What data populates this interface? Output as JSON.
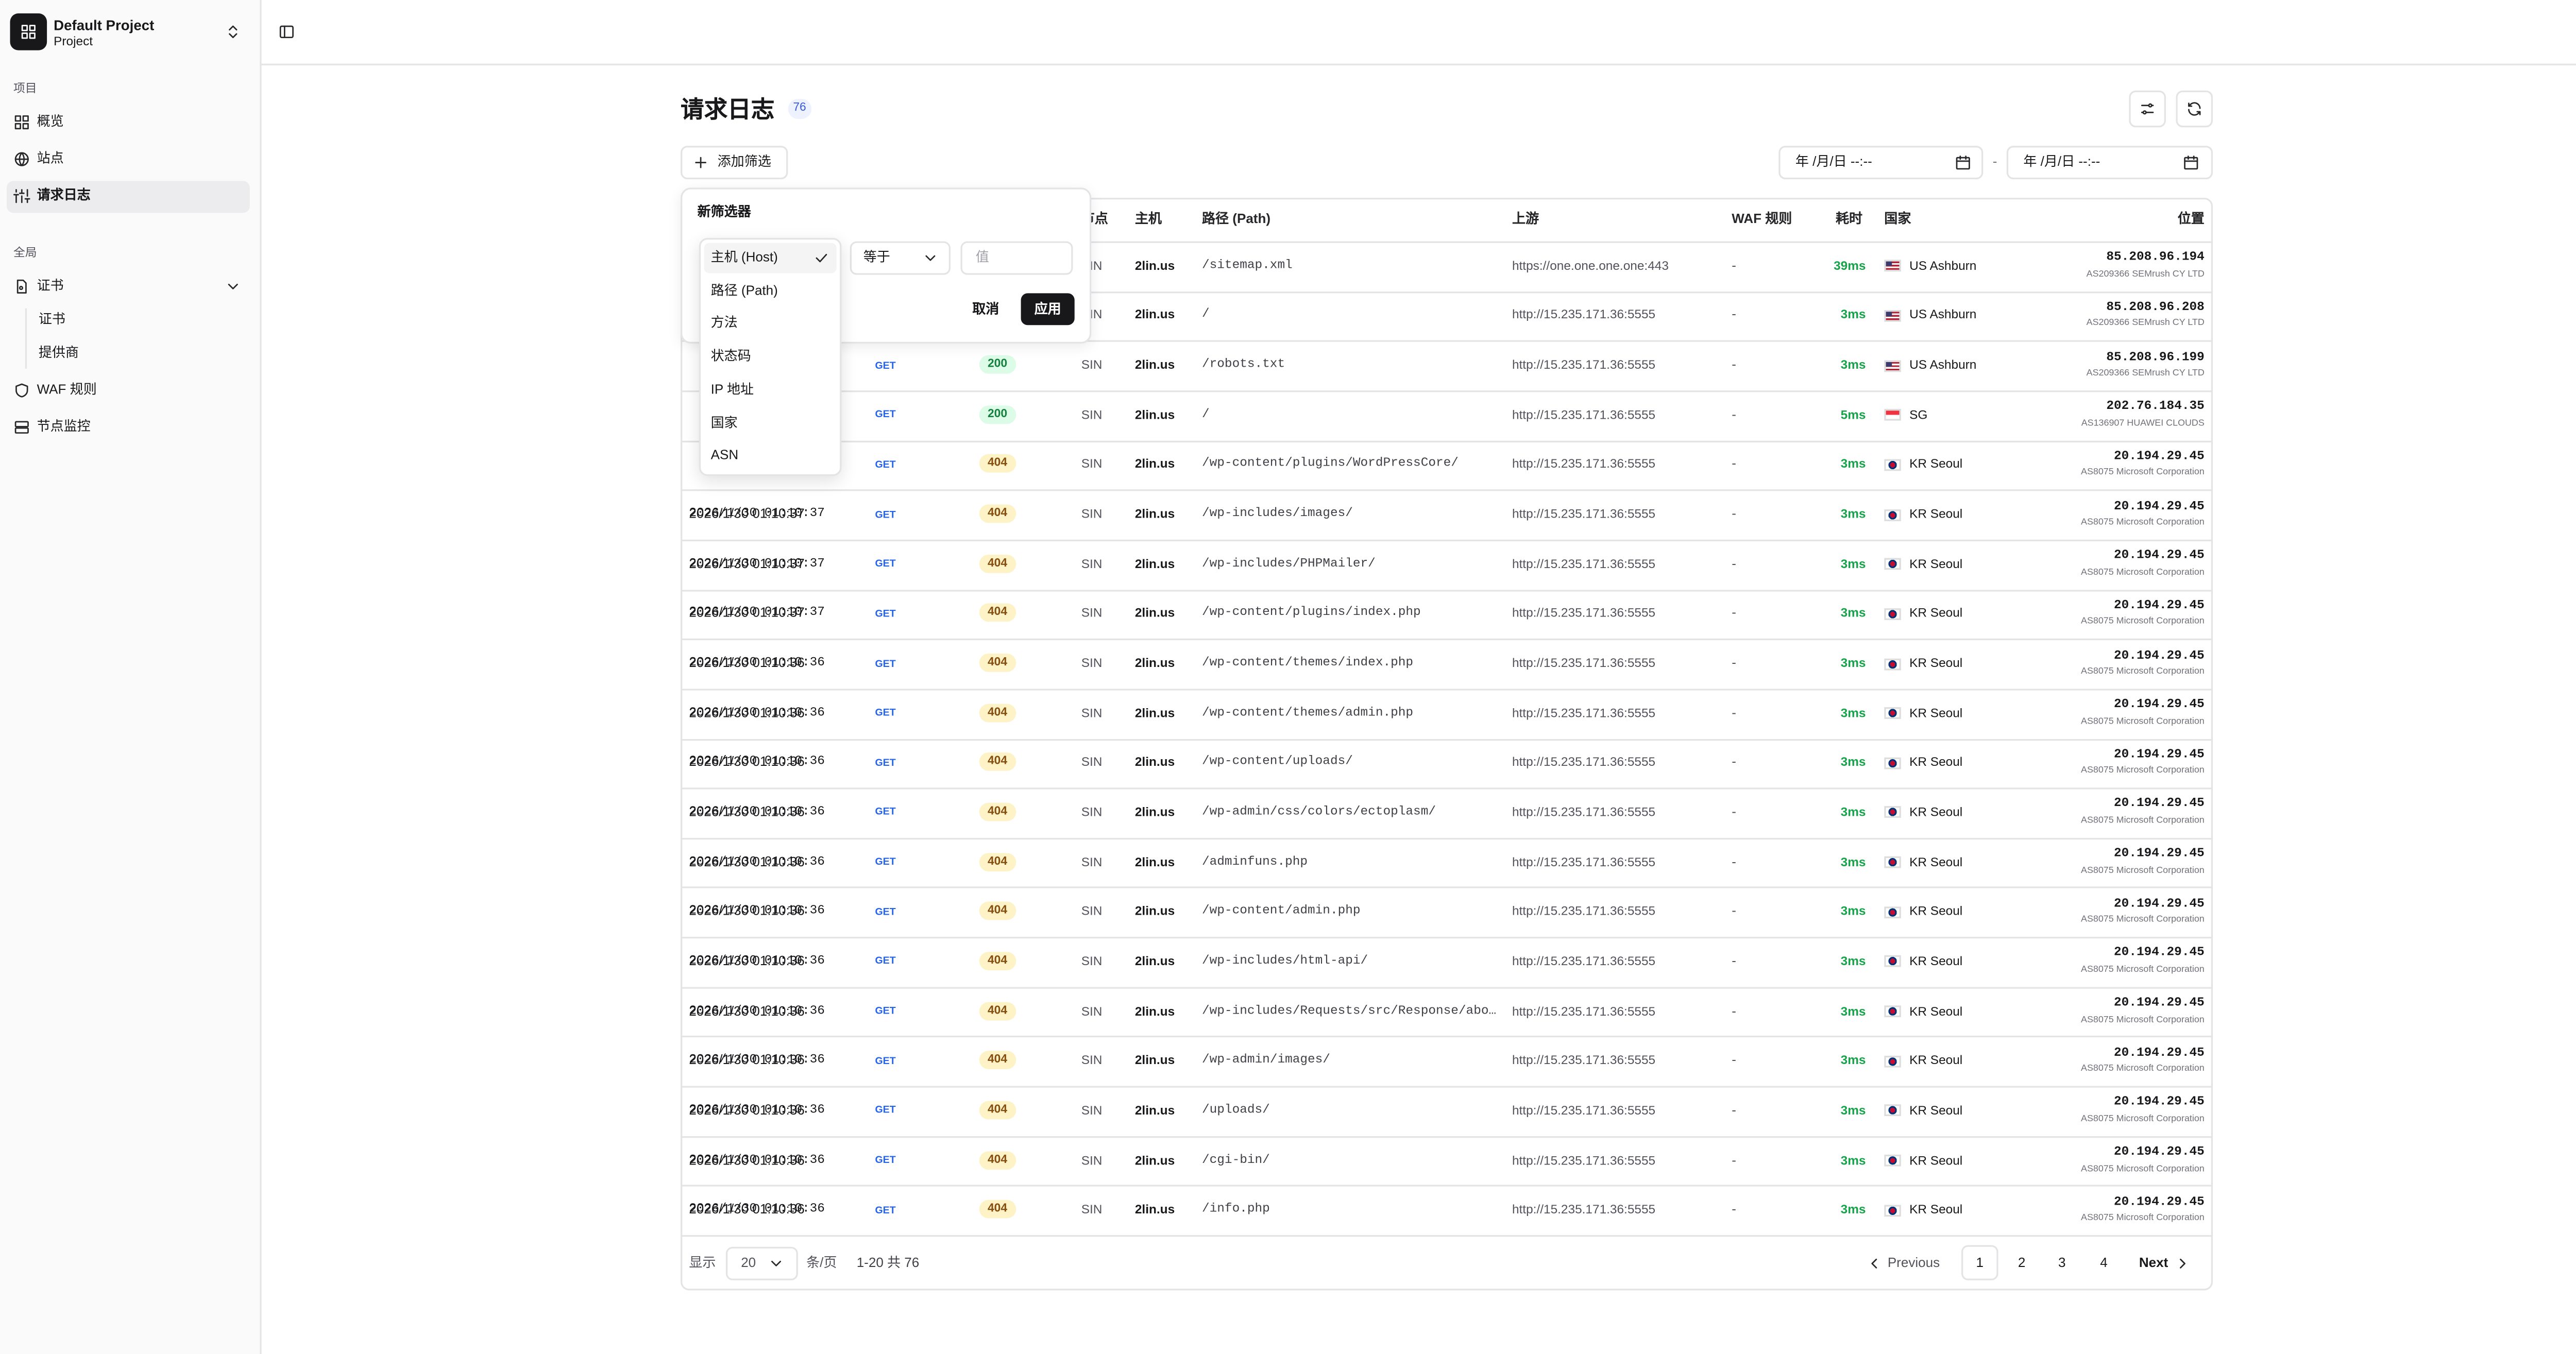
{
  "sidebar": {
    "project_name": "Default Project",
    "project_sub": "Project",
    "section_project": "项目",
    "nav_project": [
      "概览",
      "站点",
      "请求日志"
    ],
    "section_global": "全局",
    "nav_cert": "证书",
    "nav_cert_sub": [
      "证书",
      "提供商"
    ],
    "nav_global": [
      "WAF 规则",
      "节点监控"
    ]
  },
  "header": {
    "title": "请求日志",
    "count": "76",
    "add_filter": "添加筛选",
    "date_from": "年 /月/日 --:--",
    "date_sep": "-",
    "date_to": "年 /月/日 --:--"
  },
  "table": {
    "columns": {
      "node": "节点",
      "host": "主机",
      "path": "路径 (Path)",
      "upstream": "上游",
      "waf": "WAF 规则",
      "latency": "耗时",
      "country": "国家",
      "location": "位置"
    },
    "rows": [
      {
        "node": "SIN",
        "host": "2lin.us",
        "path": "/sitemap.xml",
        "upstream": "https://one.one.one.one:443",
        "waf": "-",
        "latency": "39ms",
        "flag": "us",
        "country": "US Ashburn",
        "ip": "85.208.96.194",
        "asn": "AS209366 SEMrush CY LTD"
      },
      {
        "node": "SIN",
        "host": "2lin.us",
        "path": "/",
        "upstream": "http://15.235.171.36:5555",
        "waf": "-",
        "latency": "3ms",
        "flag": "us",
        "country": "US Ashburn",
        "ip": "85.208.96.208",
        "asn": "AS209366 SEMrush CY LTD"
      },
      {
        "method": "GET",
        "status": "200",
        "node": "SIN",
        "host": "2lin.us",
        "path": "/robots.txt",
        "upstream": "http://15.235.171.36:5555",
        "waf": "-",
        "latency": "3ms",
        "flag": "us",
        "country": "US Ashburn",
        "ip": "85.208.96.199",
        "asn": "AS209366 SEMrush CY LTD"
      },
      {
        "method": "GET",
        "status": "200",
        "node": "SIN",
        "host": "2lin.us",
        "path": "/",
        "upstream": "http://15.235.171.36:5555",
        "waf": "-",
        "latency": "5ms",
        "flag": "sg",
        "country": "SG",
        "ip": "202.76.184.35",
        "asn": "AS136907 HUAWEI CLOUDS"
      },
      {
        "method": "GET",
        "status": "404",
        "node": "SIN",
        "host": "2lin.us",
        "path": "/wp-content/plugins/WordPressCore/",
        "upstream": "http://15.235.171.36:5555",
        "waf": "-",
        "latency": "3ms",
        "flag": "kr",
        "country": "KR Seoul",
        "ip": "20.194.29.45",
        "asn": "AS8075 Microsoft Corporation"
      },
      {
        "time": "2026/1/30 01:10:37",
        "method": "GET",
        "status": "404",
        "node": "SIN",
        "host": "2lin.us",
        "path": "/wp-includes/images/",
        "upstream": "http://15.235.171.36:5555",
        "waf": "-",
        "latency": "3ms",
        "flag": "kr",
        "country": "KR Seoul",
        "ip": "20.194.29.45",
        "asn": "AS8075 Microsoft Corporation"
      },
      {
        "time": "2026/1/30 01:10:37",
        "method": "GET",
        "status": "404",
        "node": "SIN",
        "host": "2lin.us",
        "path": "/wp-includes/PHPMailer/",
        "upstream": "http://15.235.171.36:5555",
        "waf": "-",
        "latency": "3ms",
        "flag": "kr",
        "country": "KR Seoul",
        "ip": "20.194.29.45",
        "asn": "AS8075 Microsoft Corporation"
      },
      {
        "time": "2026/1/30 01:10:37",
        "method": "GET",
        "status": "404",
        "node": "SIN",
        "host": "2lin.us",
        "path": "/wp-content/plugins/index.php",
        "upstream": "http://15.235.171.36:5555",
        "waf": "-",
        "latency": "3ms",
        "flag": "kr",
        "country": "KR Seoul",
        "ip": "20.194.29.45",
        "asn": "AS8075 Microsoft Corporation"
      },
      {
        "time": "2026/1/30 01:10:36",
        "method": "GET",
        "status": "404",
        "node": "SIN",
        "host": "2lin.us",
        "path": "/wp-content/themes/index.php",
        "upstream": "http://15.235.171.36:5555",
        "waf": "-",
        "latency": "3ms",
        "flag": "kr",
        "country": "KR Seoul",
        "ip": "20.194.29.45",
        "asn": "AS8075 Microsoft Corporation"
      },
      {
        "time": "2026/1/30 01:10:36",
        "method": "GET",
        "status": "404",
        "node": "SIN",
        "host": "2lin.us",
        "path": "/wp-content/themes/admin.php",
        "upstream": "http://15.235.171.36:5555",
        "waf": "-",
        "latency": "3ms",
        "flag": "kr",
        "country": "KR Seoul",
        "ip": "20.194.29.45",
        "asn": "AS8075 Microsoft Corporation"
      },
      {
        "time": "2026/1/30 01:10:36",
        "method": "GET",
        "status": "404",
        "node": "SIN",
        "host": "2lin.us",
        "path": "/wp-content/uploads/",
        "upstream": "http://15.235.171.36:5555",
        "waf": "-",
        "latency": "3ms",
        "flag": "kr",
        "country": "KR Seoul",
        "ip": "20.194.29.45",
        "asn": "AS8075 Microsoft Corporation"
      },
      {
        "time": "2026/1/30 01:10:36",
        "method": "GET",
        "status": "404",
        "node": "SIN",
        "host": "2lin.us",
        "path": "/wp-admin/css/colors/ectoplasm/",
        "upstream": "http://15.235.171.36:5555",
        "waf": "-",
        "latency": "3ms",
        "flag": "kr",
        "country": "KR Seoul",
        "ip": "20.194.29.45",
        "asn": "AS8075 Microsoft Corporation"
      },
      {
        "time": "2026/1/30 01:10:36",
        "method": "GET",
        "status": "404",
        "node": "SIN",
        "host": "2lin.us",
        "path": "/adminfuns.php",
        "upstream": "http://15.235.171.36:5555",
        "waf": "-",
        "latency": "3ms",
        "flag": "kr",
        "country": "KR Seoul",
        "ip": "20.194.29.45",
        "asn": "AS8075 Microsoft Corporation"
      },
      {
        "time": "2026/1/30 01:10:36",
        "method": "GET",
        "status": "404",
        "node": "SIN",
        "host": "2lin.us",
        "path": "/wp-content/admin.php",
        "upstream": "http://15.235.171.36:5555",
        "waf": "-",
        "latency": "3ms",
        "flag": "kr",
        "country": "KR Seoul",
        "ip": "20.194.29.45",
        "asn": "AS8075 Microsoft Corporation"
      },
      {
        "time": "2026/1/30 01:10:36",
        "method": "GET",
        "status": "404",
        "node": "SIN",
        "host": "2lin.us",
        "path": "/wp-includes/html-api/",
        "upstream": "http://15.235.171.36:5555",
        "waf": "-",
        "latency": "3ms",
        "flag": "kr",
        "country": "KR Seoul",
        "ip": "20.194.29.45",
        "asn": "AS8075 Microsoft Corporation"
      },
      {
        "time": "2026/1/30 01:10:36",
        "method": "GET",
        "status": "404",
        "node": "SIN",
        "host": "2lin.us",
        "path": "/wp-includes/Requests/src/Response/abo…",
        "upstream": "http://15.235.171.36:5555",
        "waf": "-",
        "latency": "3ms",
        "flag": "kr",
        "country": "KR Seoul",
        "ip": "20.194.29.45",
        "asn": "AS8075 Microsoft Corporation"
      },
      {
        "time": "2026/1/30 01:10:36",
        "method": "GET",
        "status": "404",
        "node": "SIN",
        "host": "2lin.us",
        "path": "/wp-admin/images/",
        "upstream": "http://15.235.171.36:5555",
        "waf": "-",
        "latency": "3ms",
        "flag": "kr",
        "country": "KR Seoul",
        "ip": "20.194.29.45",
        "asn": "AS8075 Microsoft Corporation"
      },
      {
        "time": "2026/1/30 01:10:36",
        "method": "GET",
        "status": "404",
        "node": "SIN",
        "host": "2lin.us",
        "path": "/uploads/",
        "upstream": "http://15.235.171.36:5555",
        "waf": "-",
        "latency": "3ms",
        "flag": "kr",
        "country": "KR Seoul",
        "ip": "20.194.29.45",
        "asn": "AS8075 Microsoft Corporation"
      },
      {
        "time": "2026/1/30 01:10:36",
        "method": "GET",
        "status": "404",
        "node": "SIN",
        "host": "2lin.us",
        "path": "/cgi-bin/",
        "upstream": "http://15.235.171.36:5555",
        "waf": "-",
        "latency": "3ms",
        "flag": "kr",
        "country": "KR Seoul",
        "ip": "20.194.29.45",
        "asn": "AS8075 Microsoft Corporation"
      },
      {
        "time": "2026/1/30 01:10:36",
        "method": "GET",
        "status": "404",
        "node": "SIN",
        "host": "2lin.us",
        "path": "/info.php",
        "upstream": "http://15.235.171.36:5555",
        "waf": "-",
        "latency": "3ms",
        "flag": "kr",
        "country": "KR Seoul",
        "ip": "20.194.29.45",
        "asn": "AS8075 Microsoft Corporation"
      }
    ]
  },
  "pagination": {
    "show": "显示",
    "page_size": "20",
    "per_page": "条/页",
    "range": "1-20 共 76",
    "previous": "Previous",
    "pages": [
      "1",
      "2",
      "3",
      "4"
    ],
    "next": "Next"
  },
  "filter_popup": {
    "title": "新筛选器",
    "operator": "等于",
    "value_placeholder": "值",
    "cancel": "取消",
    "apply": "应用",
    "fields": [
      "主机 (Host)",
      "路径 (Path)",
      "方法",
      "状态码",
      "IP 地址",
      "国家",
      "ASN"
    ]
  }
}
